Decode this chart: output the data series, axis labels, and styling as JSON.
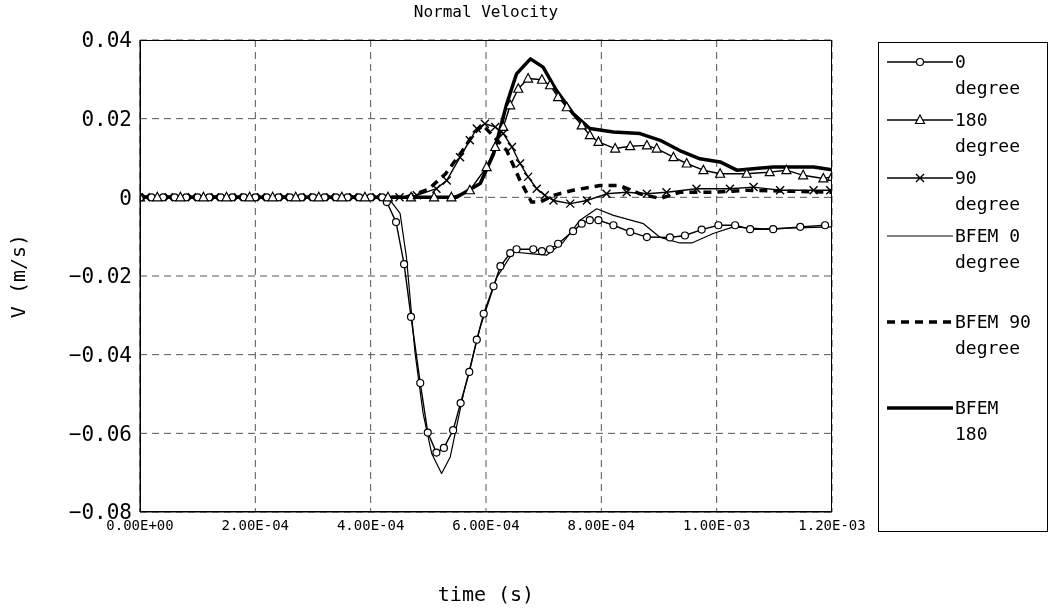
{
  "chart_data": {
    "type": "line",
    "title": "Normal Velocity",
    "xlabel": "time (s)",
    "ylabel": "V (m/s)",
    "xlim": [
      0,
      0.0012
    ],
    "xticks": [
      {
        "value": 0,
        "label": "0.00E+00"
      },
      {
        "value": 0.0002,
        "label": "2.00E-04"
      },
      {
        "value": 0.0004,
        "label": "4.00E-04"
      },
      {
        "value": 0.0006,
        "label": "6.00E-04"
      },
      {
        "value": 0.0008,
        "label": "8.00E-04"
      },
      {
        "value": 0.001,
        "label": "1.00E-03"
      },
      {
        "value": 0.0012,
        "label": "1.20E-03"
      }
    ],
    "ylim": [
      -0.08,
      0.04
    ],
    "yticks": [
      -0.08,
      -0.06,
      -0.04,
      -0.02,
      0,
      0.02,
      0.04
    ],
    "grid": true,
    "legend": "right",
    "series": [
      {
        "name": "0 degree",
        "color": "#000000",
        "marker": "circle",
        "line_style": "solid",
        "x": [
          0,
          2e-05,
          4e-05,
          6e-05,
          8e-05,
          0.0001,
          0.00012,
          0.00014,
          0.00016,
          0.00018,
          0.0002,
          0.00022,
          0.00024,
          0.00026,
          0.00028,
          0.0003,
          0.00032,
          0.00034,
          0.00036,
          0.00038,
          0.0004,
          0.00042,
          0.000428,
          0.000444,
          0.000458,
          0.00047,
          0.000486,
          0.000499,
          0.000514,
          0.000527,
          0.000543,
          0.000556,
          0.000571,
          0.000584,
          0.000596,
          0.000613,
          0.000625,
          0.000642,
          0.000653,
          0.000682,
          0.000697,
          0.000711,
          0.000725,
          0.000751,
          0.000766,
          0.00078,
          0.000795,
          0.000821,
          0.00085,
          0.000879,
          0.000919,
          0.000945,
          0.000974,
          0.001003,
          0.001032,
          0.001058,
          0.001098,
          0.001145,
          0.001188
        ],
        "values": [
          0,
          0,
          0,
          0,
          0,
          0,
          0,
          0,
          0,
          0,
          0,
          0,
          0,
          0,
          0,
          0,
          0,
          0,
          0,
          0,
          0,
          0,
          -0.0012,
          -0.0063,
          -0.017,
          -0.0304,
          -0.0472,
          -0.0598,
          -0.0649,
          -0.0637,
          -0.0592,
          -0.0523,
          -0.0444,
          -0.0362,
          -0.0296,
          -0.0226,
          -0.0175,
          -0.0142,
          -0.0132,
          -0.0132,
          -0.0137,
          -0.0132,
          -0.0118,
          -0.0086,
          -0.0067,
          -0.0058,
          -0.0058,
          -0.0071,
          -0.0088,
          -0.0101,
          -0.0102,
          -0.0097,
          -0.0082,
          -0.0071,
          -0.0071,
          -0.0081,
          -0.0081,
          -0.0075,
          -0.0071
        ]
      },
      {
        "name": "180 degree",
        "color": "#000000",
        "marker": "triangle",
        "line_style": "solid",
        "x": [
          0,
          3e-05,
          7e-05,
          0.00011,
          0.00015,
          0.00019,
          0.00023,
          0.00027,
          0.00031,
          0.00035,
          0.00039,
          0.00043,
          0.00047,
          0.00051,
          0.00054,
          0.000572,
          0.000601,
          0.000616,
          0.00063,
          0.000642,
          0.000656,
          0.000673,
          0.000697,
          0.000711,
          0.000725,
          0.00074,
          0.000766,
          0.00078,
          0.000795,
          0.000824,
          0.00085,
          0.000879,
          0.000896,
          0.000925,
          0.000948,
          0.000977,
          0.001006,
          0.001052,
          0.001092,
          0.001121,
          0.00115,
          0.001185,
          0.0012
        ],
        "values": [
          0,
          0,
          0,
          0,
          0,
          0,
          0,
          0,
          0,
          0,
          0,
          0,
          0,
          0,
          0,
          0.0018,
          0.0077,
          0.0128,
          0.0179,
          0.0234,
          0.0276,
          0.0302,
          0.0299,
          0.0285,
          0.0255,
          0.0229,
          0.0183,
          0.0158,
          0.0141,
          0.0124,
          0.013,
          0.0132,
          0.0124,
          0.0102,
          0.0086,
          0.0069,
          0.006,
          0.006,
          0.0064,
          0.0069,
          0.0056,
          0.0048,
          0.0052
        ]
      },
      {
        "name": "90 degree",
        "color": "#000000",
        "marker": "cross",
        "line_style": "solid",
        "x": [
          1e-05,
          5e-05,
          9e-05,
          0.00013,
          0.00017,
          0.00021,
          0.00025,
          0.00029,
          0.00033,
          0.00037,
          0.00041,
          0.00045,
          0.00048,
          0.000514,
          0.000532,
          0.000555,
          0.000572,
          0.000584,
          0.000598,
          0.000616,
          0.00063,
          0.000645,
          0.000659,
          0.000673,
          0.000688,
          0.000702,
          0.000717,
          0.000746,
          0.000775,
          0.000809,
          0.000844,
          0.000879,
          0.000913,
          0.000965,
          0.001023,
          0.001064,
          0.00111,
          0.001168,
          0.001197
        ],
        "values": [
          0,
          0,
          0,
          0,
          0,
          0,
          0,
          0,
          0,
          0,
          0,
          0,
          0.0005,
          0.0022,
          0.0043,
          0.0102,
          0.0145,
          0.0175,
          0.0187,
          0.0179,
          0.0162,
          0.0128,
          0.0086,
          0.0052,
          0.0022,
          0.0005,
          -0.0008,
          -0.0016,
          -0.0008,
          0.0009,
          0.0013,
          0.0009,
          0.0013,
          0.0022,
          0.0022,
          0.0026,
          0.0018,
          0.0018,
          0.0018
        ]
      },
      {
        "name": "BFEM 0 degree",
        "color": "#000000",
        "marker": "none",
        "line_style": "solid",
        "x": [
          0,
          0.00043,
          0.000451,
          0.000462,
          0.000477,
          0.000491,
          0.000506,
          0.000523,
          0.000538,
          0.000561,
          0.00059,
          0.000619,
          0.000647,
          0.000676,
          0.000705,
          0.000734,
          0.000763,
          0.000792,
          0.000821,
          0.000873,
          0.000901,
          0.000936,
          0.000957,
          0.000994,
          0.001029,
          0.001081,
          0.0012
        ],
        "values": [
          0,
          0,
          -0.0041,
          -0.0152,
          -0.0396,
          -0.055,
          -0.0652,
          -0.0702,
          -0.066,
          -0.0499,
          -0.033,
          -0.0203,
          -0.0139,
          -0.0143,
          -0.0147,
          -0.0114,
          -0.0058,
          -0.0029,
          -0.0046,
          -0.0067,
          -0.0101,
          -0.0116,
          -0.0116,
          -0.0092,
          -0.0075,
          -0.008,
          -0.0075
        ]
      },
      {
        "name": "BFEM 90 degree",
        "color": "#000000",
        "marker": "none",
        "line_style": "dashed",
        "x": [
          0,
          0.00046,
          0.0005,
          0.00053,
          0.00056,
          0.00058,
          0.000595,
          0.000636,
          0.000659,
          0.000679,
          0.000694,
          0.000717,
          0.000751,
          0.000798,
          0.000832,
          0.000867,
          0.000902,
          0.000936,
          0.000994,
          0.001052,
          0.0012
        ],
        "values": [
          0,
          0,
          0.002,
          0.006,
          0.012,
          0.0165,
          0.0183,
          0.0119,
          0.0043,
          -0.0012,
          -0.0012,
          0.0005,
          0.0018,
          0.003,
          0.003,
          0.0009,
          -0.0003,
          0.0013,
          0.0013,
          0.0018,
          0.0013
        ]
      },
      {
        "name": "BFEM 180",
        "color": "#000000",
        "marker": "none",
        "line_style": "solid",
        "x": [
          0,
          0.000549,
          0.00059,
          0.000613,
          0.000636,
          0.000653,
          0.000677,
          0.000699,
          0.000722,
          0.000751,
          0.00078,
          0.000821,
          0.000867,
          0.000902,
          0.000936,
          0.000971,
          0.001006,
          0.001035,
          0.001098,
          0.001168,
          0.0012
        ],
        "values": [
          0,
          0,
          0.0035,
          0.011,
          0.0238,
          0.0314,
          0.0352,
          0.0331,
          0.0272,
          0.0213,
          0.0175,
          0.0166,
          0.0162,
          0.0145,
          0.0119,
          0.0098,
          0.009,
          0.0069,
          0.0077,
          0.0077,
          0.007
        ]
      }
    ]
  }
}
